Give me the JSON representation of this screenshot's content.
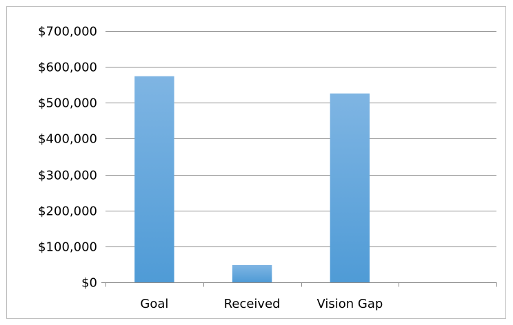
{
  "chart_data": {
    "type": "bar",
    "categories": [
      "Goal",
      "Received",
      "Vision Gap",
      ""
    ],
    "values": [
      574000,
      48000,
      526000,
      null
    ],
    "ylim": [
      0,
      700000
    ],
    "y_ticks": [
      0,
      100000,
      200000,
      300000,
      400000,
      500000,
      600000,
      700000
    ],
    "y_tick_labels": [
      "$0",
      "$100,000",
      "$200,000",
      "$300,000",
      "$400,000",
      "$500,000",
      "$600,000",
      "$700,000"
    ],
    "grid": true,
    "legend": "none",
    "bar_color_top": "#7fb5e3",
    "bar_color_bottom": "#4f9bd6"
  }
}
